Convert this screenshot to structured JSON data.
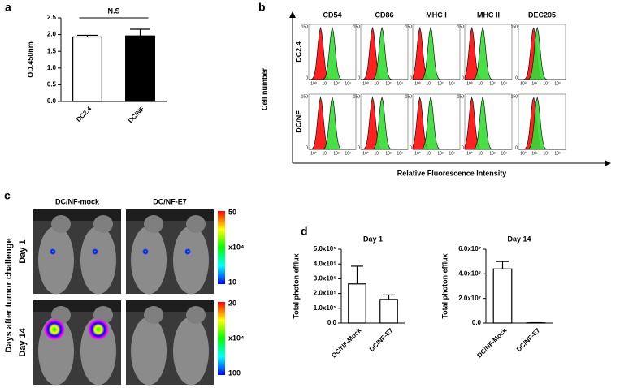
{
  "chart_data": [
    {
      "type": "bar",
      "panel": "a",
      "ylabel": "OD.450nm",
      "categories": [
        "DC2.4",
        "DC/NF"
      ],
      "values": [
        1.93,
        1.96
      ],
      "errors": [
        0.05,
        0.2
      ],
      "colors": [
        "#ffffff",
        "#000000"
      ],
      "ylim": [
        0,
        2.5
      ],
      "yticks": [
        {
          "value": 0,
          "label": "0.0"
        },
        {
          "value": 0.5,
          "label": "0.5"
        },
        {
          "value": 1,
          "label": "1.0"
        },
        {
          "value": 1.5,
          "label": "1.5"
        },
        {
          "value": 2,
          "label": "2.0"
        },
        {
          "value": 2.5,
          "label": "2.5"
        }
      ],
      "annotation": "N.S"
    },
    {
      "type": "bar",
      "panel": "d",
      "title": "Day 1",
      "ylabel": "Total photon efflux",
      "categories": [
        "DC/NF-Mock",
        "DC/NF-E7"
      ],
      "values": [
        265000,
        160000
      ],
      "errors": [
        120000,
        30000
      ],
      "colors": [
        "#ffffff",
        "#ffffff"
      ],
      "ylim": [
        0,
        500000
      ],
      "yticks": [
        {
          "value": 0,
          "label": "0.0"
        },
        {
          "value": 100000,
          "label": "1.0x10⁵"
        },
        {
          "value": 200000,
          "label": "2.0x10⁵"
        },
        {
          "value": 300000,
          "label": "3.0x10⁵"
        },
        {
          "value": 400000,
          "label": "4.0x10⁵"
        },
        {
          "value": 500000,
          "label": "5.0x10⁵"
        }
      ]
    },
    {
      "type": "bar",
      "title": "Day 14",
      "ylabel": "Total photon efflux",
      "categories": [
        "DC/NF-Mock",
        "DC/NF-E7"
      ],
      "values": [
        44000000,
        200000
      ],
      "errors": [
        6000000,
        100000
      ],
      "colors": [
        "#ffffff",
        "#ffffff"
      ],
      "ylim": [
        0,
        60000000
      ],
      "yticks": [
        {
          "value": 0,
          "label": "0.0"
        },
        {
          "value": 20000000,
          "label": "2.0x10⁷"
        },
        {
          "value": 40000000,
          "label": "4.0x10⁷"
        },
        {
          "value": 60000000,
          "label": "6.0x10⁷"
        }
      ]
    }
  ],
  "flow_panel": {
    "label": "b",
    "markers": [
      "CD54",
      "CD86",
      "MHC I",
      "MHC II",
      "DEC205"
    ],
    "samples": [
      "DC2.4",
      "DC/NF"
    ],
    "ylabel": "Cell number",
    "xlabel": "Relative Fluorescence Intensity",
    "y_ticks": [
      "150",
      "0"
    ],
    "x_ticks": [
      "10⁰",
      "10¹",
      "10²",
      "10³"
    ]
  },
  "imaging_panel": {
    "label": "c",
    "groups": [
      "DC/NF-mock",
      "DC/NF-E7"
    ],
    "days": [
      "Day 1",
      "Day 14"
    ],
    "ylabel": "Days after tumor challenge",
    "colorbars": [
      [
        "50",
        "x10⁴",
        "10"
      ],
      [
        "20",
        "x10⁴",
        "100"
      ]
    ]
  }
}
